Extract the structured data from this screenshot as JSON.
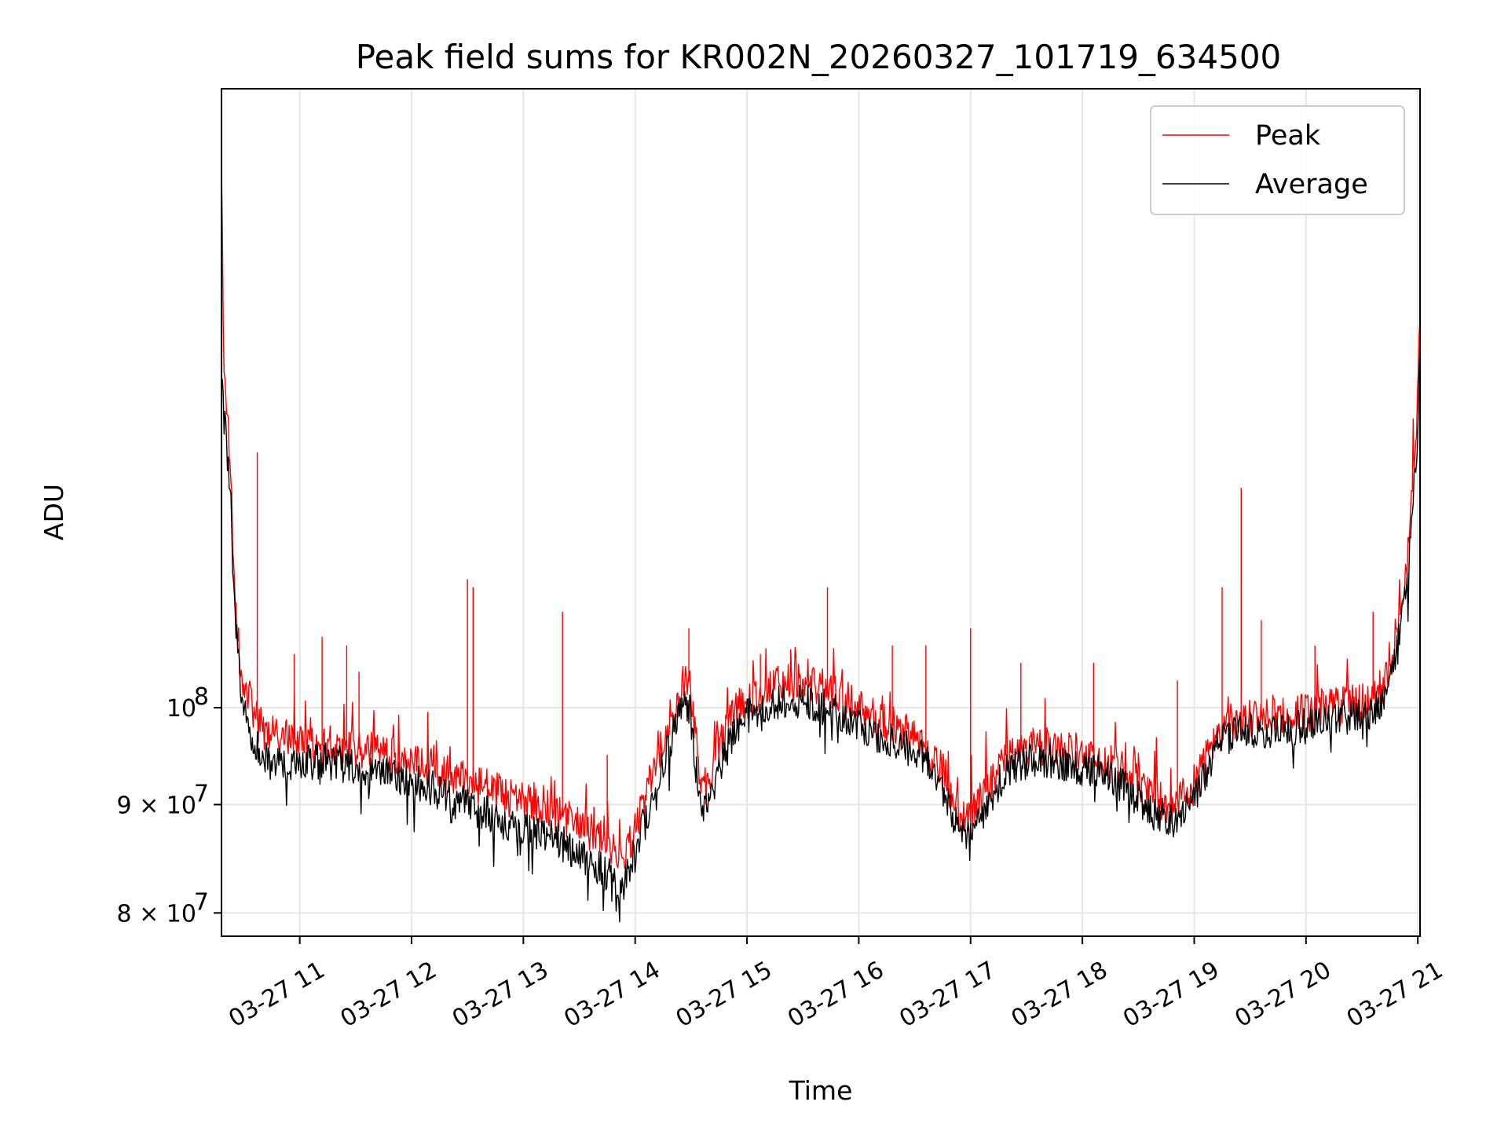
{
  "chart_data": {
    "type": "line",
    "title": "Peak field sums for KR002N_20260327_101719_634500",
    "xlabel": "Time",
    "ylabel": "ADU",
    "yscale": "log",
    "xlim": [
      10.3,
      21.02
    ],
    "ylim": [
      78000000,
      196000000
    ],
    "grid": true,
    "legend_position": "top-right",
    "x_ticks": [
      {
        "value": 11,
        "label": "03-27 11"
      },
      {
        "value": 12,
        "label": "03-27 12"
      },
      {
        "value": 13,
        "label": "03-27 13"
      },
      {
        "value": 14,
        "label": "03-27 14"
      },
      {
        "value": 15,
        "label": "03-27 15"
      },
      {
        "value": 16,
        "label": "03-27 16"
      },
      {
        "value": 17,
        "label": "03-27 17"
      },
      {
        "value": 18,
        "label": "03-27 18"
      },
      {
        "value": 19,
        "label": "03-27 19"
      },
      {
        "value": 20,
        "label": "03-27 20"
      },
      {
        "value": 21,
        "label": "03-27 21"
      }
    ],
    "y_ticks": [
      {
        "value": 80000000,
        "label_base": "8 × 10",
        "label_exp": "7"
      },
      {
        "value": 90000000,
        "label_base": "9 × 10",
        "label_exp": "7"
      },
      {
        "value": 100000000,
        "label_base": "10",
        "label_exp": "8"
      }
    ],
    "series": [
      {
        "name": "Peak",
        "color": "#ff0000",
        "x": [
          10.3,
          10.32,
          10.35,
          10.38,
          10.42,
          10.46,
          10.5,
          10.55,
          10.6,
          10.65,
          10.7,
          10.8,
          10.9,
          11.0,
          11.2,
          11.4,
          11.6,
          11.8,
          12.0,
          12.2,
          12.4,
          12.6,
          12.8,
          13.0,
          13.2,
          13.4,
          13.6,
          13.8,
          13.9,
          14.0,
          14.1,
          14.2,
          14.3,
          14.4,
          14.45,
          14.5,
          14.55,
          14.6,
          14.7,
          14.8,
          15.0,
          15.2,
          15.4,
          15.6,
          15.8,
          16.0,
          16.2,
          16.4,
          16.6,
          16.7,
          16.8,
          16.9,
          17.0,
          17.1,
          17.2,
          17.3,
          17.4,
          17.6,
          17.8,
          18.0,
          18.2,
          18.4,
          18.5,
          18.6,
          18.7,
          18.8,
          18.9,
          19.0,
          19.2,
          19.4,
          19.6,
          19.8,
          20.0,
          20.2,
          20.4,
          20.6,
          20.7,
          20.8,
          20.9,
          20.95,
          21.0,
          21.02
        ],
        "values": [
          182000000,
          142000000,
          138000000,
          130000000,
          112000000,
          106000000,
          103000000,
          101000000,
          99000000,
          98000000,
          97500000,
          97000000,
          96800000,
          96500000,
          96000000,
          95800000,
          95500000,
          95000000,
          94500000,
          93500000,
          92500000,
          92000000,
          91000000,
          90500000,
          90000000,
          88500000,
          87500000,
          85500000,
          84500000,
          88000000,
          91000000,
          94500000,
          98000000,
          101000000,
          104000000,
          102000000,
          96000000,
          91000000,
          94000000,
          98000000,
          101000000,
          102500000,
          103000000,
          102500000,
          101500000,
          100000000,
          98500000,
          97500000,
          96000000,
          94500000,
          92000000,
          89000000,
          89500000,
          90500000,
          92500000,
          94500000,
          95500000,
          96000000,
          95500000,
          95000000,
          94500000,
          93000000,
          92000000,
          91000000,
          90500000,
          90000000,
          91000000,
          92000000,
          97000000,
          99000000,
          99000000,
          99500000,
          99500000,
          100000000,
          100500000,
          101000000,
          103000000,
          108000000,
          117000000,
          127000000,
          140000000,
          152000000
        ],
        "spikes": [
          {
            "x": 10.62,
            "value": 132000000
          },
          {
            "x": 10.95,
            "value": 106000000
          },
          {
            "x": 11.2,
            "value": 108000000
          },
          {
            "x": 11.42,
            "value": 107000000
          },
          {
            "x": 11.53,
            "value": 104000000
          },
          {
            "x": 12.5,
            "value": 115000000
          },
          {
            "x": 12.55,
            "value": 114000000
          },
          {
            "x": 13.35,
            "value": 111000000
          },
          {
            "x": 13.75,
            "value": 95000000
          },
          {
            "x": 14.48,
            "value": 109000000
          },
          {
            "x": 15.12,
            "value": 106000000
          },
          {
            "x": 15.72,
            "value": 114000000
          },
          {
            "x": 16.3,
            "value": 107000000
          },
          {
            "x": 16.6,
            "value": 107000000
          },
          {
            "x": 17.0,
            "value": 109000000
          },
          {
            "x": 17.45,
            "value": 105000000
          },
          {
            "x": 18.1,
            "value": 105000000
          },
          {
            "x": 18.85,
            "value": 103000000
          },
          {
            "x": 19.25,
            "value": 114000000
          },
          {
            "x": 19.42,
            "value": 127000000
          },
          {
            "x": 19.6,
            "value": 110000000
          },
          {
            "x": 20.08,
            "value": 107000000
          },
          {
            "x": 20.6,
            "value": 111000000
          }
        ]
      },
      {
        "name": "Average",
        "color": "#000000",
        "x": [
          10.3,
          10.32,
          10.35,
          10.38,
          10.42,
          10.46,
          10.5,
          10.55,
          10.6,
          10.65,
          10.7,
          10.8,
          10.9,
          11.0,
          11.2,
          11.4,
          11.6,
          11.8,
          12.0,
          12.2,
          12.4,
          12.6,
          12.8,
          13.0,
          13.2,
          13.4,
          13.6,
          13.8,
          13.9,
          14.0,
          14.1,
          14.2,
          14.3,
          14.4,
          14.45,
          14.5,
          14.55,
          14.6,
          14.7,
          14.8,
          15.0,
          15.2,
          15.4,
          15.6,
          15.8,
          16.0,
          16.2,
          16.4,
          16.6,
          16.7,
          16.8,
          16.9,
          17.0,
          17.1,
          17.2,
          17.3,
          17.4,
          17.6,
          17.8,
          18.0,
          18.2,
          18.4,
          18.5,
          18.6,
          18.7,
          18.8,
          18.9,
          19.0,
          19.2,
          19.4,
          19.6,
          19.8,
          20.0,
          20.2,
          20.4,
          20.6,
          20.7,
          20.8,
          20.9,
          20.95,
          21.0,
          21.02
        ],
        "values": [
          142000000,
          138000000,
          132000000,
          126000000,
          110000000,
          104000000,
          100000000,
          97500000,
          96000000,
          95000000,
          94500000,
          94000000,
          94000000,
          94000000,
          94500000,
          94000000,
          93500000,
          93000000,
          92500000,
          91500000,
          90500000,
          89500000,
          88500000,
          87500000,
          87000000,
          86000000,
          84500000,
          83000000,
          82500000,
          86000000,
          89000000,
          92500000,
          96000000,
          99000000,
          101000000,
          99000000,
          93000000,
          89000000,
          91500000,
          95500000,
          99000000,
          100500000,
          101000000,
          100500000,
          99500000,
          98000000,
          97000000,
          96000000,
          94500000,
          93000000,
          90500000,
          87500000,
          87500000,
          88500000,
          91000000,
          93000000,
          94000000,
          94500000,
          94000000,
          93500000,
          93000000,
          91500000,
          90500000,
          89500000,
          89000000,
          88500000,
          89500000,
          90500000,
          96000000,
          97500000,
          97500000,
          97500000,
          98000000,
          98500000,
          99000000,
          99500000,
          101000000,
          105000000,
          114000000,
          123000000,
          136000000,
          147000000
        ]
      }
    ]
  }
}
